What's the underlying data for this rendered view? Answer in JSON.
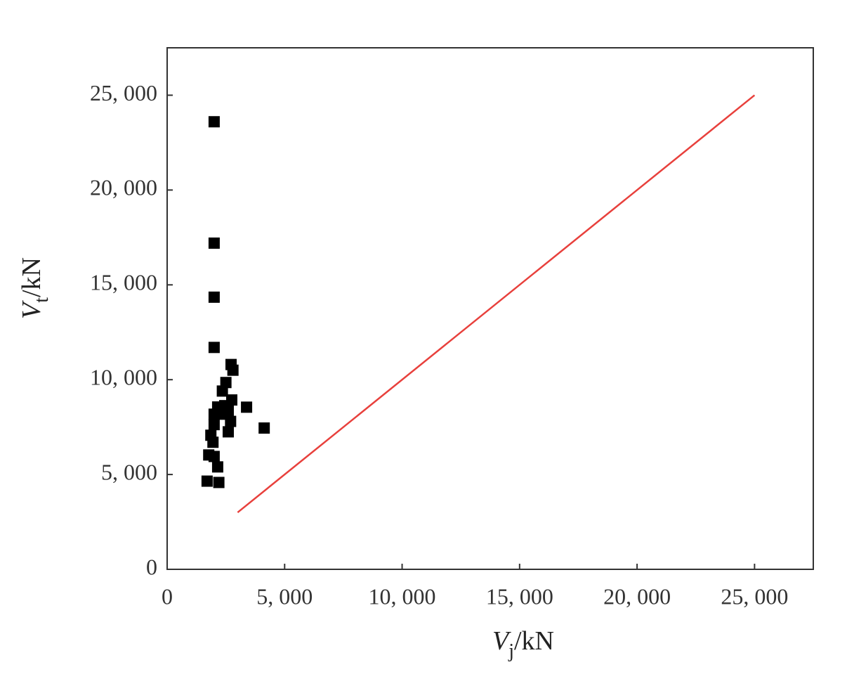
{
  "chart_data": {
    "type": "scatter",
    "x_label": {
      "symbol": "V",
      "subscript": "j",
      "unit": "/kN"
    },
    "y_label": {
      "symbol": "V",
      "subscript": "t",
      "unit": "/kN"
    },
    "series": [
      {
        "color": "#000000",
        "x": [
          2000,
          2000,
          2000,
          2000,
          2720,
          2800,
          2500,
          2350,
          3380,
          4130,
          1700,
          2200,
          2150,
          1770,
          2000,
          1860,
          2000,
          2150,
          2300,
          2600,
          2600,
          2700,
          2750,
          2450,
          2000,
          1950
        ],
        "values": [
          23600,
          17200,
          14350,
          11700,
          10800,
          10500,
          9850,
          9400,
          8550,
          7450,
          4650,
          4580,
          5400,
          6030,
          5950,
          7070,
          7630,
          8560,
          8180,
          8370,
          7250,
          7800,
          8930,
          8630,
          8180,
          6700
        ]
      }
    ],
    "reference_line": {
      "x": [
        3000,
        25000
      ],
      "y": [
        3000,
        25000
      ],
      "color": "#e8403c"
    },
    "xlim": [
      0,
      27500
    ],
    "ylim": [
      0,
      27500
    ],
    "xticks": [
      0,
      {
        "value": 5000,
        "label": "5, 000"
      },
      {
        "value": 10000,
        "label": "10, 000"
      },
      {
        "value": 15000,
        "label": "15, 000"
      },
      {
        "value": 20000,
        "label": "20, 000"
      },
      {
        "value": 25000,
        "label": "25, 000"
      }
    ],
    "yticks": [
      0,
      {
        "value": 5000,
        "label": "5, 000"
      },
      {
        "value": 10000,
        "label": "10, 000"
      },
      {
        "value": 15000,
        "label": "15, 000"
      },
      {
        "value": 20000,
        "label": "20, 000"
      },
      {
        "value": 25000,
        "label": "25, 000"
      }
    ]
  }
}
